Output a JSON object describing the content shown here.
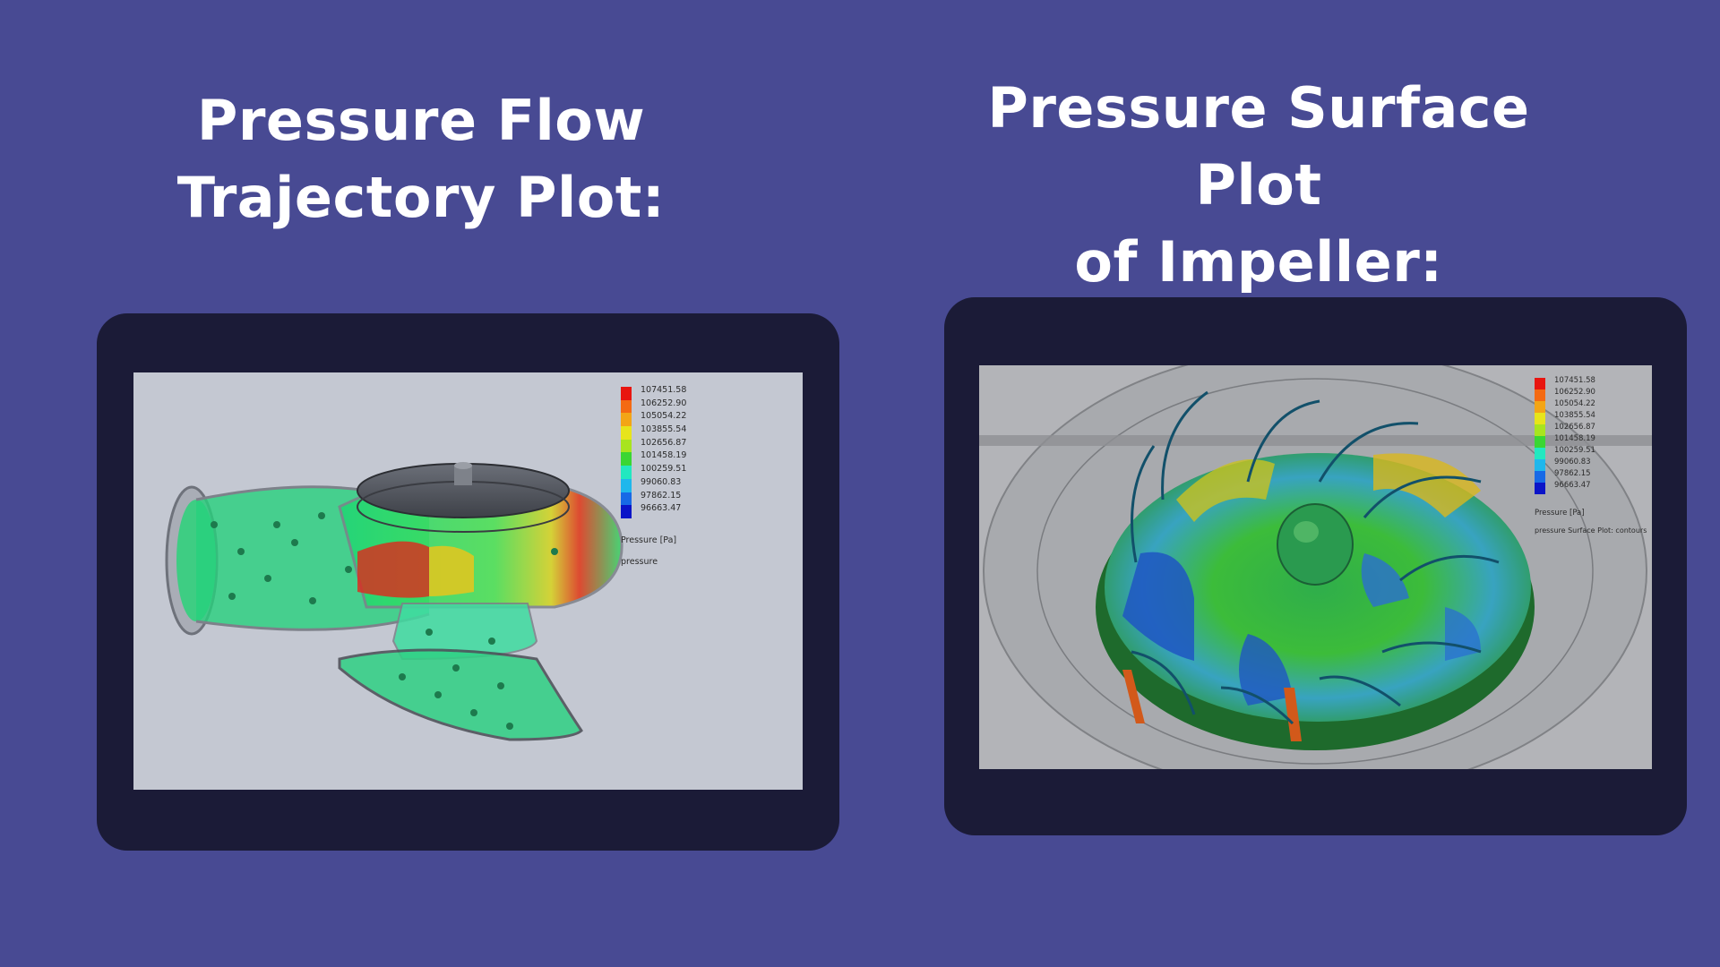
{
  "left": {
    "title": "Pressure Flow\nTrajectory Plot:",
    "legend": {
      "values": [
        "107451.58",
        "106252.90",
        "105054.22",
        "103855.54",
        "102656.87",
        "101458.19",
        "100259.51",
        "99060.83",
        "97862.15",
        "96663.47"
      ],
      "unit": "Pressure [Pa]",
      "caption": "pressure"
    }
  },
  "right": {
    "title": "Pressure Surface Plot\nof Impeller:",
    "legend": {
      "values": [
        "107451.58",
        "106252.90",
        "105054.22",
        "103855.54",
        "102656.87",
        "101458.19",
        "100259.51",
        "99060.83",
        "97862.15",
        "96663.47"
      ],
      "unit": "Pressure [Pa]",
      "caption": "pressure Surface Plot: contours"
    }
  },
  "colors": {
    "background": "#484a93",
    "tablet": "#1b1b37",
    "legend_scale": [
      "#e8150f",
      "#f46a12",
      "#f3a516",
      "#e7e41b",
      "#a8e41f",
      "#3ad633",
      "#22e8c0",
      "#1fb7ec",
      "#1769e6",
      "#0b14c8"
    ]
  }
}
